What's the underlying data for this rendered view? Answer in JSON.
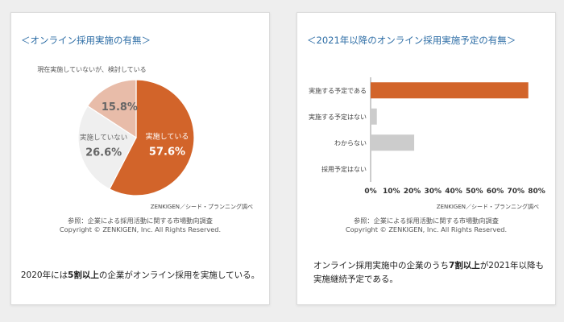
{
  "left_card": {
    "title": "＜オンライン採用実施の有無＞",
    "credit": "ZENKIGEN／シード・プランニング調べ",
    "reference_line1": "参照：企業による採用活動に関する市場動向調査",
    "reference_line2": "Copyright © ZENKIGEN,  Inc. All Rights  Reserved.",
    "caption_pre": "2020年には",
    "caption_bold": "5割以上",
    "caption_post": "の企業がオンライン採用を実施している。"
  },
  "right_card": {
    "title": "＜2021年以降のオンライン採用実施予定の有無＞",
    "credit": "ZENKIGEN／シード・プランニング調べ",
    "reference_line1": "参照：企業による採用活動に関する市場動向調査",
    "reference_line2": "Copyright © ZENKIGEN,  Inc. All Rights  Reserved.",
    "caption_pre": "オンライン採用実施中の企業のうち",
    "caption_bold": "7割以上",
    "caption_post": "が2021年以降も",
    "caption_line2": "実施継続予定である。"
  },
  "chart_data": [
    {
      "type": "pie",
      "title": "＜オンライン採用実施の有無＞",
      "slices": [
        {
          "label": "実施している",
          "value": 57.6,
          "value_label": "57.6%",
          "color": "#d2642a"
        },
        {
          "label": "実施していない",
          "value": 26.6,
          "value_label": "26.6%",
          "color": "#efefef"
        },
        {
          "label": "現在実施していないが、検討している",
          "value": 15.8,
          "value_label": "15.8%",
          "color": "#e8bca9"
        }
      ]
    },
    {
      "type": "bar",
      "orientation": "horizontal",
      "title": "＜2021年以降のオンライン採用実施予定の有無＞",
      "categories": [
        "実施する予定である",
        "実施する予定はない",
        "わからない",
        "採用予定はない"
      ],
      "values": [
        76,
        3,
        21,
        0
      ],
      "colors": [
        "#d2642a",
        "#cccccc",
        "#cccccc",
        "#cccccc"
      ],
      "xlim": [
        0,
        80
      ],
      "ticks": [
        0,
        10,
        20,
        30,
        40,
        50,
        60,
        70,
        80
      ],
      "tick_labels": [
        "0%",
        "10%",
        "20%",
        "30%",
        "40%",
        "50%",
        "60%",
        "70%",
        "80%"
      ]
    }
  ]
}
